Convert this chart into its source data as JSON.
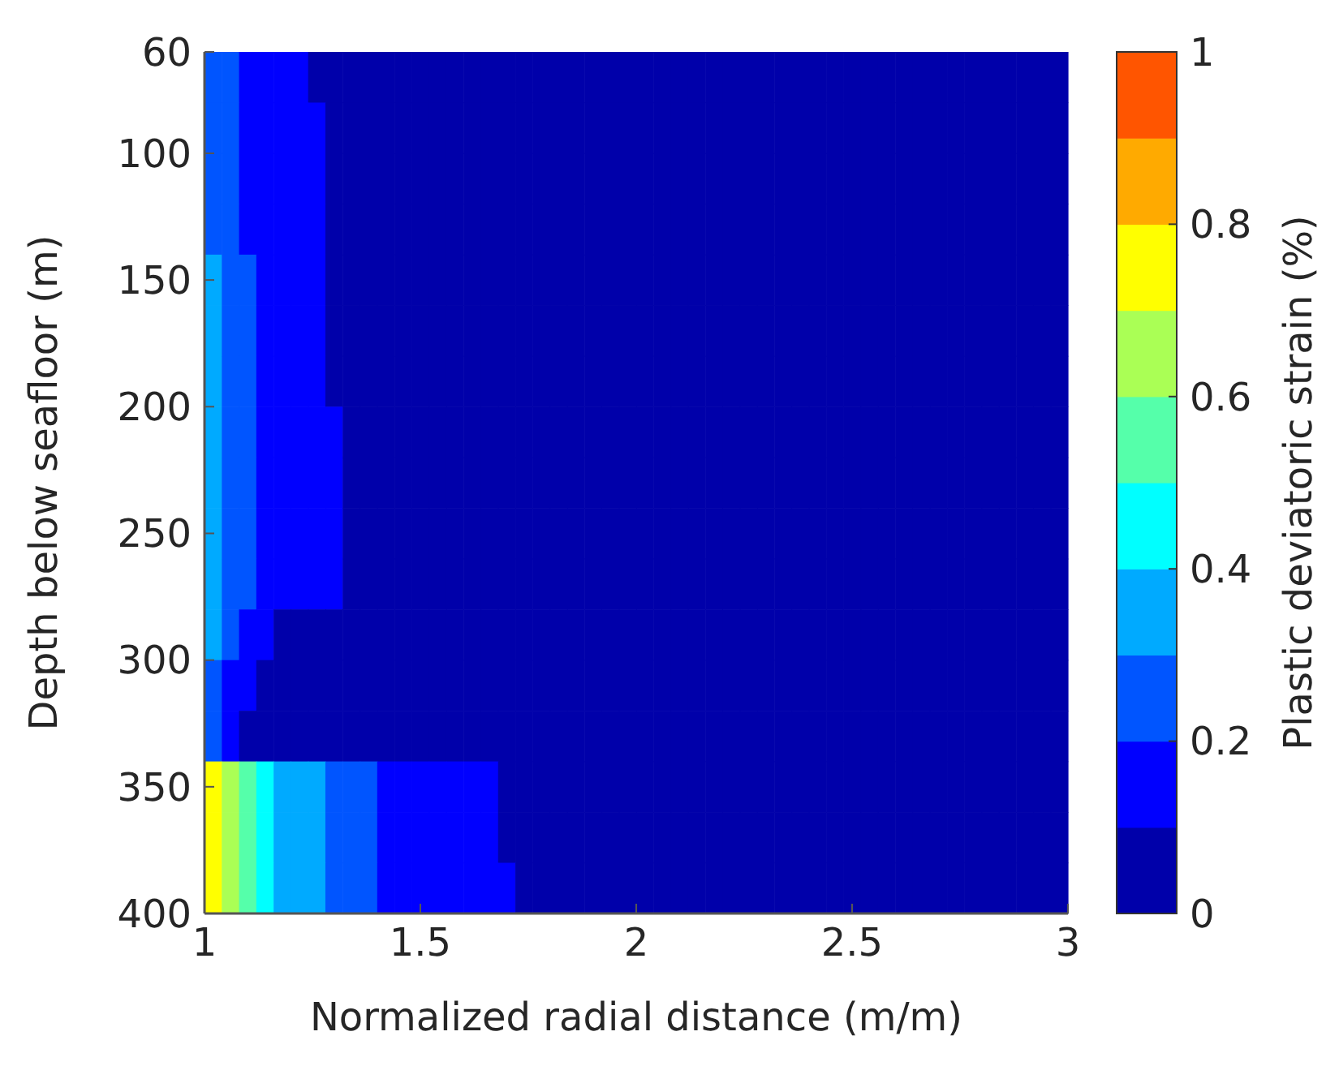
{
  "chart_data": {
    "type": "heatmap",
    "xlabel": "Normalized radial distance (m/m)",
    "ylabel": "Depth below seafloor (m)",
    "clabel": "Plastic deviatoric strain (%)",
    "xlim": [
      1,
      3
    ],
    "xticks": [
      1,
      1.5,
      2,
      2.5,
      3
    ],
    "ylim": [
      400,
      60
    ],
    "yticks": [
      60,
      100,
      150,
      200,
      250,
      300,
      350,
      400
    ],
    "clim": [
      0,
      1
    ],
    "cticks": [
      0,
      0.2,
      0.4,
      0.6,
      0.8,
      1
    ],
    "colors": [
      "#0000aa",
      "#0000ff",
      "#0055ff",
      "#00aaff",
      "#00ffff",
      "#55ffaa",
      "#aaff55",
      "#ffff00",
      "#ffaa00",
      "#ff5500"
    ],
    "grid": false,
    "cells": [
      [
        0.25,
        0.25,
        0.15,
        0.15,
        0.15,
        0.15,
        0.05,
        0.05,
        0.05,
        0.05,
        0.05,
        0.05,
        0.05,
        0.05,
        0.05,
        0.05,
        0.05,
        0.05,
        0.05,
        0.05,
        0.05,
        0.05,
        0.05,
        0.05,
        0.05,
        0.05,
        0.05,
        0.05,
        0.05,
        0.05,
        0.05,
        0.05,
        0.05,
        0.05,
        0.05,
        0.05,
        0.05,
        0.05,
        0.05,
        0.05,
        0.05,
        0.05,
        0.05,
        0.05,
        0.05,
        0.05,
        0.05,
        0.05,
        0.05,
        0.05
      ],
      [
        0.25,
        0.25,
        0.15,
        0.15,
        0.15,
        0.15,
        0.15,
        0.05,
        0.05,
        0.05,
        0.05,
        0.05,
        0.05,
        0.05,
        0.05,
        0.05,
        0.05,
        0.05,
        0.05,
        0.05,
        0.05,
        0.05,
        0.05,
        0.05,
        0.05,
        0.05,
        0.05,
        0.05,
        0.05,
        0.05,
        0.05,
        0.05,
        0.05,
        0.05,
        0.05,
        0.05,
        0.05,
        0.05,
        0.05,
        0.05,
        0.05,
        0.05,
        0.05,
        0.05,
        0.05,
        0.05,
        0.05,
        0.05,
        0.05,
        0.05
      ],
      [
        0.25,
        0.25,
        0.15,
        0.15,
        0.15,
        0.15,
        0.15,
        0.05,
        0.05,
        0.05,
        0.05,
        0.05,
        0.05,
        0.05,
        0.05,
        0.05,
        0.05,
        0.05,
        0.05,
        0.05,
        0.05,
        0.05,
        0.05,
        0.05,
        0.05,
        0.05,
        0.05,
        0.05,
        0.05,
        0.05,
        0.05,
        0.05,
        0.05,
        0.05,
        0.05,
        0.05,
        0.05,
        0.05,
        0.05,
        0.05,
        0.05,
        0.05,
        0.05,
        0.05,
        0.05,
        0.05,
        0.05,
        0.05,
        0.05,
        0.05
      ],
      [
        0.25,
        0.25,
        0.15,
        0.15,
        0.15,
        0.15,
        0.15,
        0.05,
        0.05,
        0.05,
        0.05,
        0.05,
        0.05,
        0.05,
        0.05,
        0.05,
        0.05,
        0.05,
        0.05,
        0.05,
        0.05,
        0.05,
        0.05,
        0.05,
        0.05,
        0.05,
        0.05,
        0.05,
        0.05,
        0.05,
        0.05,
        0.05,
        0.05,
        0.05,
        0.05,
        0.05,
        0.05,
        0.05,
        0.05,
        0.05,
        0.05,
        0.05,
        0.05,
        0.05,
        0.05,
        0.05,
        0.05,
        0.05,
        0.05,
        0.05
      ],
      [
        0.35,
        0.25,
        0.25,
        0.15,
        0.15,
        0.15,
        0.15,
        0.05,
        0.05,
        0.05,
        0.05,
        0.05,
        0.05,
        0.05,
        0.05,
        0.05,
        0.05,
        0.05,
        0.05,
        0.05,
        0.05,
        0.05,
        0.05,
        0.05,
        0.05,
        0.05,
        0.05,
        0.05,
        0.05,
        0.05,
        0.05,
        0.05,
        0.05,
        0.05,
        0.05,
        0.05,
        0.05,
        0.05,
        0.05,
        0.05,
        0.05,
        0.05,
        0.05,
        0.05,
        0.05,
        0.05,
        0.05,
        0.05,
        0.05,
        0.05
      ],
      [
        0.35,
        0.25,
        0.25,
        0.15,
        0.15,
        0.15,
        0.15,
        0.05,
        0.05,
        0.05,
        0.05,
        0.05,
        0.05,
        0.05,
        0.05,
        0.05,
        0.05,
        0.05,
        0.05,
        0.05,
        0.05,
        0.05,
        0.05,
        0.05,
        0.05,
        0.05,
        0.05,
        0.05,
        0.05,
        0.05,
        0.05,
        0.05,
        0.05,
        0.05,
        0.05,
        0.05,
        0.05,
        0.05,
        0.05,
        0.05,
        0.05,
        0.05,
        0.05,
        0.05,
        0.05,
        0.05,
        0.05,
        0.05,
        0.05,
        0.05
      ],
      [
        0.35,
        0.25,
        0.25,
        0.15,
        0.15,
        0.15,
        0.15,
        0.05,
        0.05,
        0.05,
        0.05,
        0.05,
        0.05,
        0.05,
        0.05,
        0.05,
        0.05,
        0.05,
        0.05,
        0.05,
        0.05,
        0.05,
        0.05,
        0.05,
        0.05,
        0.05,
        0.05,
        0.05,
        0.05,
        0.05,
        0.05,
        0.05,
        0.05,
        0.05,
        0.05,
        0.05,
        0.05,
        0.05,
        0.05,
        0.05,
        0.05,
        0.05,
        0.05,
        0.05,
        0.05,
        0.05,
        0.05,
        0.05,
        0.05,
        0.05
      ],
      [
        0.35,
        0.25,
        0.25,
        0.15,
        0.15,
        0.15,
        0.15,
        0.15,
        0.05,
        0.05,
        0.05,
        0.05,
        0.05,
        0.05,
        0.05,
        0.05,
        0.05,
        0.05,
        0.05,
        0.05,
        0.05,
        0.05,
        0.05,
        0.05,
        0.05,
        0.05,
        0.05,
        0.05,
        0.05,
        0.05,
        0.05,
        0.05,
        0.05,
        0.05,
        0.05,
        0.05,
        0.05,
        0.05,
        0.05,
        0.05,
        0.05,
        0.05,
        0.05,
        0.05,
        0.05,
        0.05,
        0.05,
        0.05,
        0.05,
        0.05
      ],
      [
        0.35,
        0.25,
        0.25,
        0.15,
        0.15,
        0.15,
        0.15,
        0.15,
        0.05,
        0.05,
        0.05,
        0.05,
        0.05,
        0.05,
        0.05,
        0.05,
        0.05,
        0.05,
        0.05,
        0.05,
        0.05,
        0.05,
        0.05,
        0.05,
        0.05,
        0.05,
        0.05,
        0.05,
        0.05,
        0.05,
        0.05,
        0.05,
        0.05,
        0.05,
        0.05,
        0.05,
        0.05,
        0.05,
        0.05,
        0.05,
        0.05,
        0.05,
        0.05,
        0.05,
        0.05,
        0.05,
        0.05,
        0.05,
        0.05,
        0.05
      ],
      [
        0.35,
        0.25,
        0.25,
        0.15,
        0.15,
        0.15,
        0.15,
        0.15,
        0.05,
        0.05,
        0.05,
        0.05,
        0.05,
        0.05,
        0.05,
        0.05,
        0.05,
        0.05,
        0.05,
        0.05,
        0.05,
        0.05,
        0.05,
        0.05,
        0.05,
        0.05,
        0.05,
        0.05,
        0.05,
        0.05,
        0.05,
        0.05,
        0.05,
        0.05,
        0.05,
        0.05,
        0.05,
        0.05,
        0.05,
        0.05,
        0.05,
        0.05,
        0.05,
        0.05,
        0.05,
        0.05,
        0.05,
        0.05,
        0.05,
        0.05
      ],
      [
        0.35,
        0.25,
        0.25,
        0.15,
        0.15,
        0.15,
        0.15,
        0.15,
        0.05,
        0.05,
        0.05,
        0.05,
        0.05,
        0.05,
        0.05,
        0.05,
        0.05,
        0.05,
        0.05,
        0.05,
        0.05,
        0.05,
        0.05,
        0.05,
        0.05,
        0.05,
        0.05,
        0.05,
        0.05,
        0.05,
        0.05,
        0.05,
        0.05,
        0.05,
        0.05,
        0.05,
        0.05,
        0.05,
        0.05,
        0.05,
        0.05,
        0.05,
        0.05,
        0.05,
        0.05,
        0.05,
        0.05,
        0.05,
        0.05,
        0.05
      ],
      [
        0.35,
        0.25,
        0.15,
        0.15,
        0.05,
        0.05,
        0.05,
        0.05,
        0.05,
        0.05,
        0.05,
        0.05,
        0.05,
        0.05,
        0.05,
        0.05,
        0.05,
        0.05,
        0.05,
        0.05,
        0.05,
        0.05,
        0.05,
        0.05,
        0.05,
        0.05,
        0.05,
        0.05,
        0.05,
        0.05,
        0.05,
        0.05,
        0.05,
        0.05,
        0.05,
        0.05,
        0.05,
        0.05,
        0.05,
        0.05,
        0.05,
        0.05,
        0.05,
        0.05,
        0.05,
        0.05,
        0.05,
        0.05,
        0.05,
        0.05
      ],
      [
        0.25,
        0.15,
        0.15,
        0.05,
        0.05,
        0.05,
        0.05,
        0.05,
        0.05,
        0.05,
        0.05,
        0.05,
        0.05,
        0.05,
        0.05,
        0.05,
        0.05,
        0.05,
        0.05,
        0.05,
        0.05,
        0.05,
        0.05,
        0.05,
        0.05,
        0.05,
        0.05,
        0.05,
        0.05,
        0.05,
        0.05,
        0.05,
        0.05,
        0.05,
        0.05,
        0.05,
        0.05,
        0.05,
        0.05,
        0.05,
        0.05,
        0.05,
        0.05,
        0.05,
        0.05,
        0.05,
        0.05,
        0.05,
        0.05,
        0.05
      ],
      [
        0.25,
        0.15,
        0.05,
        0.05,
        0.05,
        0.05,
        0.05,
        0.05,
        0.05,
        0.05,
        0.05,
        0.05,
        0.05,
        0.05,
        0.05,
        0.05,
        0.05,
        0.05,
        0.05,
        0.05,
        0.05,
        0.05,
        0.05,
        0.05,
        0.05,
        0.05,
        0.05,
        0.05,
        0.05,
        0.05,
        0.05,
        0.05,
        0.05,
        0.05,
        0.05,
        0.05,
        0.05,
        0.05,
        0.05,
        0.05,
        0.05,
        0.05,
        0.05,
        0.05,
        0.05,
        0.05,
        0.05,
        0.05,
        0.05,
        0.05
      ],
      [
        0.75,
        0.65,
        0.55,
        0.45,
        0.35,
        0.35,
        0.35,
        0.25,
        0.25,
        0.25,
        0.15,
        0.15,
        0.15,
        0.15,
        0.15,
        0.15,
        0.15,
        0.05,
        0.05,
        0.05,
        0.05,
        0.05,
        0.05,
        0.05,
        0.05,
        0.05,
        0.05,
        0.05,
        0.05,
        0.05,
        0.05,
        0.05,
        0.05,
        0.05,
        0.05,
        0.05,
        0.05,
        0.05,
        0.05,
        0.05,
        0.05,
        0.05,
        0.05,
        0.05,
        0.05,
        0.05,
        0.05,
        0.05,
        0.05,
        0.05
      ],
      [
        0.75,
        0.65,
        0.55,
        0.45,
        0.35,
        0.35,
        0.35,
        0.25,
        0.25,
        0.25,
        0.15,
        0.15,
        0.15,
        0.15,
        0.15,
        0.15,
        0.15,
        0.05,
        0.05,
        0.05,
        0.05,
        0.05,
        0.05,
        0.05,
        0.05,
        0.05,
        0.05,
        0.05,
        0.05,
        0.05,
        0.05,
        0.05,
        0.05,
        0.05,
        0.05,
        0.05,
        0.05,
        0.05,
        0.05,
        0.05,
        0.05,
        0.05,
        0.05,
        0.05,
        0.05,
        0.05,
        0.05,
        0.05,
        0.05,
        0.05
      ],
      [
        0.75,
        0.65,
        0.55,
        0.45,
        0.35,
        0.35,
        0.35,
        0.25,
        0.25,
        0.25,
        0.15,
        0.15,
        0.15,
        0.15,
        0.15,
        0.15,
        0.15,
        0.15,
        0.05,
        0.05,
        0.05,
        0.05,
        0.05,
        0.05,
        0.05,
        0.05,
        0.05,
        0.05,
        0.05,
        0.05,
        0.05,
        0.05,
        0.05,
        0.05,
        0.05,
        0.05,
        0.05,
        0.05,
        0.05,
        0.05,
        0.05,
        0.05,
        0.05,
        0.05,
        0.05,
        0.05,
        0.05,
        0.05,
        0.05,
        0.05
      ]
    ]
  }
}
